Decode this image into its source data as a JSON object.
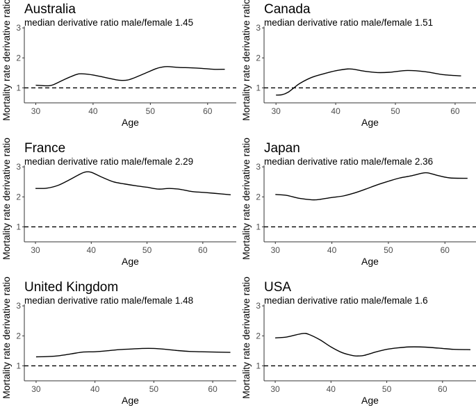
{
  "chart_data": [
    {
      "type": "line",
      "title": "Australia",
      "subtitle": "median derivative ratio male/female 1.45",
      "xlabel": "Age",
      "ylabel": "Mortality rate derivative ratio",
      "xlim": [
        28,
        65
      ],
      "ylim": [
        0.5,
        3.05
      ],
      "xticks": [
        30,
        40,
        50,
        60
      ],
      "yticks": [
        1,
        2,
        3
      ],
      "reference_line": 1,
      "grid": false,
      "x": [
        30,
        32,
        33,
        35,
        37,
        38,
        40,
        42,
        44,
        45,
        46,
        47,
        49,
        51,
        52,
        53,
        55,
        57,
        59,
        61,
        63
      ],
      "y": [
        1.09,
        1.07,
        1.1,
        1.28,
        1.44,
        1.47,
        1.43,
        1.35,
        1.27,
        1.25,
        1.26,
        1.32,
        1.48,
        1.64,
        1.69,
        1.71,
        1.68,
        1.67,
        1.65,
        1.62,
        1.62
      ]
    },
    {
      "type": "line",
      "title": "Canada",
      "subtitle": "median derivative ratio male/female 1.51",
      "xlabel": "Age",
      "ylabel": "Mortality rate derivative ratio",
      "xlim": [
        28,
        63.5
      ],
      "ylim": [
        0.5,
        3.05
      ],
      "xticks": [
        30,
        40,
        50,
        60
      ],
      "yticks": [
        1,
        2,
        3
      ],
      "reference_line": 1,
      "grid": false,
      "x": [
        30,
        31,
        32,
        33,
        34,
        36,
        38,
        40,
        42,
        43,
        45,
        47,
        49,
        52,
        55,
        58,
        61
      ],
      "y": [
        0.76,
        0.77,
        0.85,
        1.0,
        1.15,
        1.35,
        1.47,
        1.57,
        1.63,
        1.62,
        1.55,
        1.51,
        1.52,
        1.58,
        1.54,
        1.44,
        1.4
      ]
    },
    {
      "type": "line",
      "title": "France",
      "subtitle": "median derivative ratio male/female 2.29",
      "xlabel": "Age",
      "ylabel": "Mortality rate derivative ratio",
      "xlim": [
        28,
        66
      ],
      "ylim": [
        0.5,
        3.05
      ],
      "xticks": [
        30,
        40,
        50,
        60
      ],
      "yticks": [
        1,
        2,
        3
      ],
      "reference_line": 1,
      "grid": false,
      "x": [
        30,
        32,
        34,
        36,
        38,
        39,
        40,
        42,
        44,
        46,
        48,
        50,
        52,
        54,
        56,
        58,
        60,
        62,
        65
      ],
      "y": [
        2.28,
        2.29,
        2.38,
        2.56,
        2.76,
        2.83,
        2.82,
        2.65,
        2.5,
        2.43,
        2.37,
        2.32,
        2.26,
        2.28,
        2.25,
        2.18,
        2.15,
        2.12,
        2.07
      ]
    },
    {
      "type": "line",
      "title": "Japan",
      "subtitle": "median derivative ratio male/female 2.36",
      "xlabel": "Age",
      "ylabel": "Mortality rate derivative ratio",
      "xlim": [
        28,
        65.5
      ],
      "ylim": [
        0.5,
        3.05
      ],
      "xticks": [
        30,
        40,
        50,
        60
      ],
      "yticks": [
        1,
        2,
        3
      ],
      "reference_line": 1,
      "grid": false,
      "x": [
        30,
        32,
        34,
        36,
        37,
        38,
        40,
        42,
        44,
        46,
        48,
        50,
        52,
        54,
        56,
        57,
        59,
        61,
        64
      ],
      "y": [
        2.08,
        2.05,
        1.96,
        1.91,
        1.9,
        1.92,
        1.98,
        2.03,
        2.13,
        2.26,
        2.4,
        2.52,
        2.63,
        2.7,
        2.79,
        2.8,
        2.7,
        2.63,
        2.62
      ]
    },
    {
      "type": "line",
      "title": "United Kingdom",
      "subtitle": "median derivative ratio male/female 1.48",
      "xlabel": "Age",
      "ylabel": "Mortality rate derivative ratio",
      "xlim": [
        28,
        64
      ],
      "ylim": [
        0.5,
        3.05
      ],
      "xticks": [
        30,
        40,
        50,
        60
      ],
      "yticks": [
        1,
        2,
        3
      ],
      "reference_line": 1,
      "grid": false,
      "x": [
        30,
        32,
        34,
        36,
        38,
        40,
        42,
        44,
        46,
        48,
        50,
        52,
        54,
        56,
        58,
        60,
        63
      ],
      "y": [
        1.3,
        1.31,
        1.34,
        1.4,
        1.46,
        1.47,
        1.5,
        1.54,
        1.56,
        1.58,
        1.58,
        1.55,
        1.51,
        1.48,
        1.47,
        1.46,
        1.45
      ]
    },
    {
      "type": "line",
      "title": "USA",
      "subtitle": "median derivative ratio male/female 1.6",
      "xlabel": "Age",
      "ylabel": "Mortality rate derivative ratio",
      "xlim": [
        28,
        66
      ],
      "ylim": [
        0.5,
        3.05
      ],
      "xticks": [
        30,
        40,
        50,
        60
      ],
      "yticks": [
        1,
        2,
        3
      ],
      "reference_line": 1,
      "grid": false,
      "x": [
        30,
        32,
        33,
        35,
        36,
        38,
        40,
        42,
        44,
        45,
        46,
        48,
        50,
        52,
        54,
        56,
        58,
        60,
        62,
        65
      ],
      "y": [
        1.93,
        1.96,
        2.0,
        2.08,
        2.05,
        1.87,
        1.63,
        1.44,
        1.34,
        1.33,
        1.35,
        1.46,
        1.55,
        1.6,
        1.63,
        1.63,
        1.61,
        1.58,
        1.55,
        1.54
      ]
    }
  ]
}
